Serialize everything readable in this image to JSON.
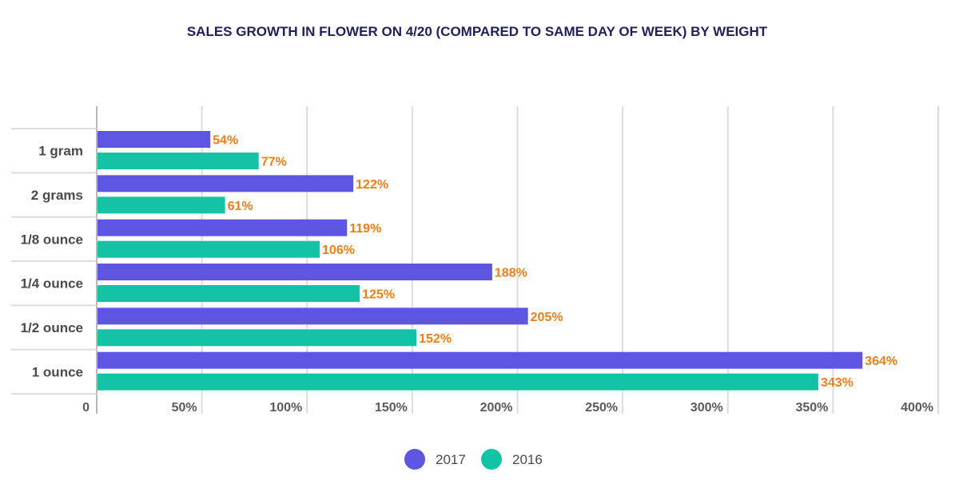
{
  "chart_data": {
    "type": "bar",
    "orientation": "horizontal",
    "title": "SALES GROWTH IN FLOWER ON 4/20 (COMPARED TO SAME DAY OF WEEK) BY WEIGHT",
    "categories": [
      "1 gram",
      "2 grams",
      "1/8 ounce",
      "1/4 ounce",
      "1/2 ounce",
      "1 ounce"
    ],
    "series": [
      {
        "name": "2017",
        "color": "#5f55e3",
        "values": [
          54,
          122,
          119,
          188,
          205,
          364
        ],
        "labels": [
          "54%",
          "122%",
          "119%",
          "188%",
          "205%",
          "364%"
        ]
      },
      {
        "name": "2016",
        "color": "#12c4a5",
        "values": [
          77,
          61,
          106,
          125,
          152,
          343
        ],
        "labels": [
          "77%",
          "61%",
          "106%",
          "125%",
          "152%",
          "343%"
        ]
      }
    ],
    "xlim": [
      0,
      400
    ],
    "ticks": [
      {
        "value": 0,
        "label": "0"
      },
      {
        "value": 50,
        "label": "50%"
      },
      {
        "value": 100,
        "label": "100%"
      },
      {
        "value": 150,
        "label": "150%"
      },
      {
        "value": 200,
        "label": "200%"
      },
      {
        "value": 250,
        "label": "250%"
      },
      {
        "value": 300,
        "label": "300%"
      },
      {
        "value": 350,
        "label": "350%"
      },
      {
        "value": 400,
        "label": "400%"
      }
    ],
    "label_color": "#f07d17",
    "grid": true,
    "legend_position": "bottom-center"
  }
}
